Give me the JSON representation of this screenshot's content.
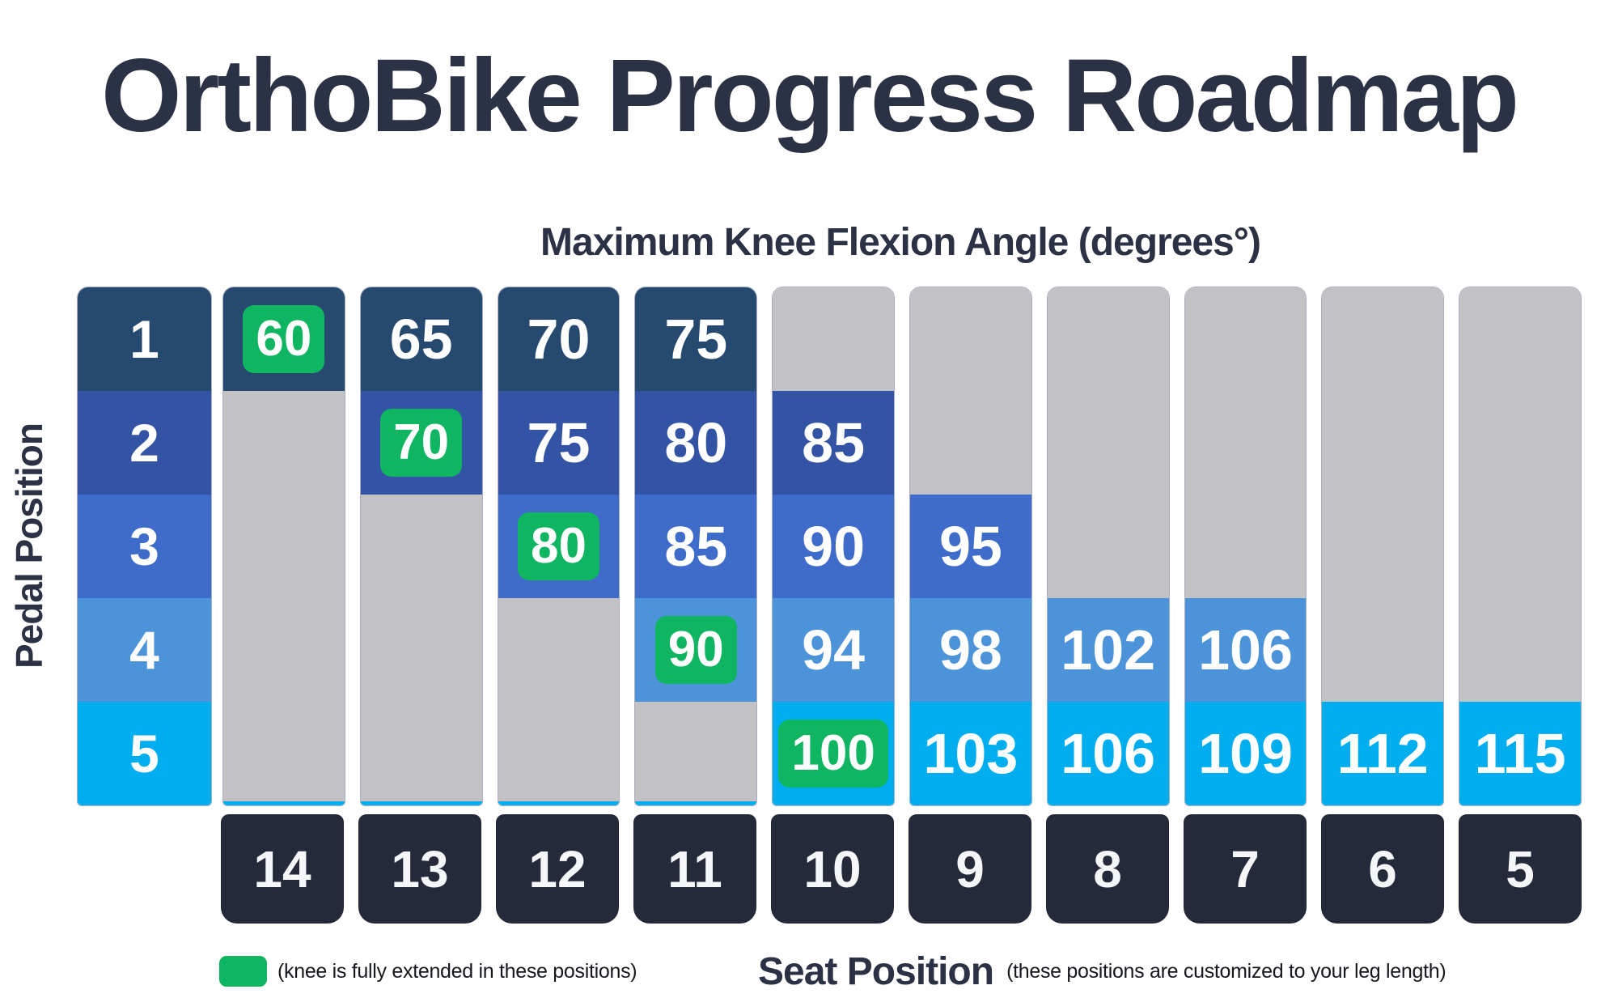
{
  "page": {
    "title": "OrthoBike Progress Roadmap",
    "subtitle": "Maximum Knee Flexion Angle (degrees°)"
  },
  "y_axis": {
    "label": "Pedal Position"
  },
  "legend": {
    "green_note": "(knee is fully extended in these positions)",
    "x_axis_title": "Seat Position",
    "x_axis_note": "(these positions are customized to your leg length)"
  },
  "colors": {
    "background": "#ffffff",
    "slate": "#2c3245",
    "row_colors": [
      "#26496f",
      "#3354a4",
      "#3f6bca",
      "#4c93da",
      "#00aeef"
    ],
    "green": "#10b561",
    "grey": "#c2c2c4",
    "seat_box": "#252a3b",
    "cell_text": "#ffffff",
    "note_text": "#15181d"
  },
  "chart_data": {
    "type": "heatmap",
    "title": "OrthoBike Progress Roadmap",
    "subtitle": "Maximum Knee Flexion Angle (degrees°)",
    "xlabel": "Seat Position",
    "ylabel": "Pedal Position",
    "x_categories": [
      14,
      13,
      12,
      11,
      10,
      9,
      8,
      7,
      6,
      5
    ],
    "y_categories": [
      1,
      2,
      3,
      4,
      5
    ],
    "green_meaning": "knee is fully extended in these positions",
    "x_note": "these positions are customized to your leg length",
    "columns": [
      {
        "seat": 14,
        "cells": [
          {
            "value": 60,
            "green": true
          },
          null,
          null,
          null,
          null
        ]
      },
      {
        "seat": 13,
        "cells": [
          {
            "value": 65
          },
          {
            "value": 70,
            "green": true
          },
          null,
          null,
          null
        ]
      },
      {
        "seat": 12,
        "cells": [
          {
            "value": 70
          },
          {
            "value": 75
          },
          {
            "value": 80,
            "green": true
          },
          null,
          null
        ]
      },
      {
        "seat": 11,
        "cells": [
          {
            "value": 75
          },
          {
            "value": 80
          },
          {
            "value": 85
          },
          {
            "value": 90,
            "green": true
          },
          null
        ]
      },
      {
        "seat": 10,
        "cells": [
          null,
          {
            "value": 85
          },
          {
            "value": 90
          },
          {
            "value": 94
          },
          {
            "value": 100,
            "green": true
          }
        ]
      },
      {
        "seat": 9,
        "cells": [
          null,
          null,
          {
            "value": 95
          },
          {
            "value": 98
          },
          {
            "value": 103
          }
        ]
      },
      {
        "seat": 8,
        "cells": [
          null,
          null,
          null,
          {
            "value": 102
          },
          {
            "value": 106
          }
        ]
      },
      {
        "seat": 7,
        "cells": [
          null,
          null,
          null,
          {
            "value": 106
          },
          {
            "value": 109
          }
        ]
      },
      {
        "seat": 6,
        "cells": [
          null,
          null,
          null,
          null,
          {
            "value": 112
          }
        ]
      },
      {
        "seat": 5,
        "cells": [
          null,
          null,
          null,
          null,
          {
            "value": 115
          }
        ]
      }
    ]
  }
}
